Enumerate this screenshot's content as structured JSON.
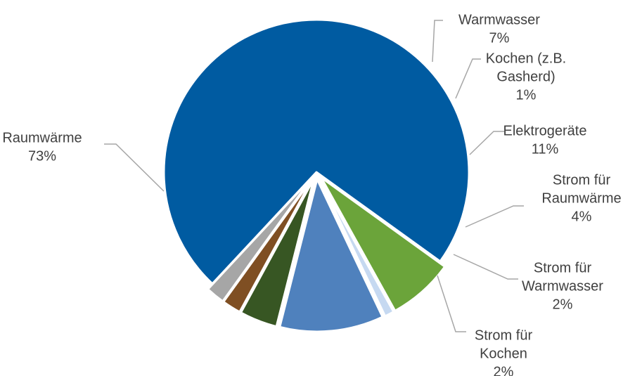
{
  "chart_data": {
    "type": "pie",
    "title": "",
    "slices": [
      {
        "name": "Raumwärme",
        "label_lines": [
          "Raumwärme"
        ],
        "value": 73,
        "value_label": "73%",
        "color": "#005ba1",
        "exploded": false
      },
      {
        "name": "Warmwasser",
        "label_lines": [
          "Warmwasser"
        ],
        "value": 7,
        "value_label": "7%",
        "color": "#6ba43a",
        "exploded": true
      },
      {
        "name": "Kochen (z.B. Gasherd)",
        "label_lines": [
          "Kochen (z.B.",
          "Gasherd)"
        ],
        "value": 1,
        "value_label": "1%",
        "color": "#c6d9f1",
        "exploded": true
      },
      {
        "name": "Elektrogeräte",
        "label_lines": [
          "Elektrogeräte"
        ],
        "value": 11,
        "value_label": "11%",
        "color": "#4f81bd",
        "exploded": true
      },
      {
        "name": "Strom für Raumwärme",
        "label_lines": [
          "Strom für",
          "Raumwärme"
        ],
        "value": 4,
        "value_label": "4%",
        "color": "#375623",
        "exploded": true
      },
      {
        "name": "Strom für Warmwasser",
        "label_lines": [
          "Strom für",
          "Warmwasser"
        ],
        "value": 2,
        "value_label": "2%",
        "color": "#7f4f23",
        "exploded": true
      },
      {
        "name": "Strom für Kochen",
        "label_lines": [
          "Strom für",
          "Kochen"
        ],
        "value": 2,
        "value_label": "2%",
        "color": "#a6a6a6",
        "exploded": true
      }
    ],
    "legend": "none",
    "labels": "outside with leader lines"
  }
}
